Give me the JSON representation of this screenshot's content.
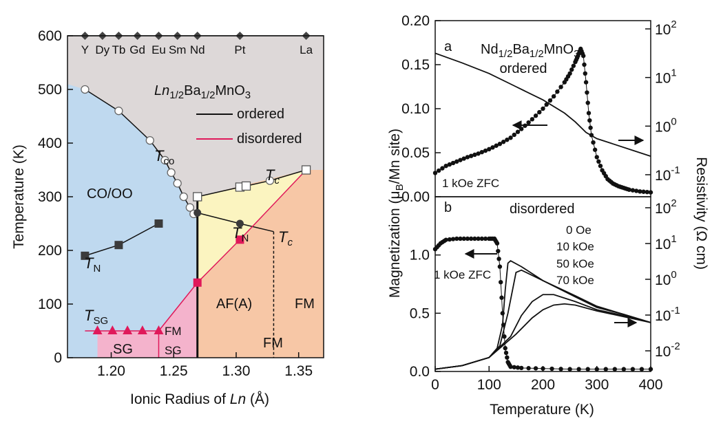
{
  "chart_data": [
    {
      "type": "scatter",
      "panel": "left",
      "formula": {
        "sym": "Ln",
        "sub1": "1/2",
        "base": "Ba",
        "sub2": "1/2",
        "tail": "MnO",
        "sub3": "3"
      },
      "xlabel": {
        "pre": "Ionic Radius of ",
        "ital": "Ln",
        "post": " (Å)"
      },
      "ylabel": "Temperature (K)",
      "xlim": [
        1.165,
        1.37
      ],
      "ylim": [
        0,
        600
      ],
      "xticks": [
        "1.20",
        "1.25",
        "1.30",
        "1.35"
      ],
      "yticks": [
        "0",
        "100",
        "200",
        "300",
        "400",
        "500",
        "600"
      ],
      "legend": {
        "placement": "top-right",
        "entries": [
          {
            "label": "ordered",
            "color": "#111111"
          },
          {
            "label": "disordered",
            "color": "#e0195a"
          }
        ]
      },
      "elements": {
        "labels": [
          "Y",
          "Dy",
          "Tb",
          "Gd",
          "Eu",
          "Sm",
          "Nd",
          "Pt",
          "La"
        ],
        "x": [
          1.179,
          1.193,
          1.206,
          1.221,
          1.238,
          1.253,
          1.269,
          1.303,
          1.356
        ],
        "y": 600
      },
      "regions": [
        "CO/OO",
        "AF(A)",
        "FM",
        "FM",
        "SG",
        "FM",
        "SG"
      ],
      "region_colors": {
        "gray": "#ddd8d8",
        "blue": "#bfd9ef",
        "yellow": "#fbf4c0",
        "orange": "#f7c7a6",
        "pink": "#f4b3cc"
      },
      "transition_labels": {
        "Tco": {
          "sym": "T",
          "sub": "co"
        },
        "Tc": {
          "sym": "T",
          "sub": "c"
        },
        "TN": {
          "sym": "T",
          "sub": "N"
        },
        "TSG": {
          "sym": "T",
          "sub": "SG"
        }
      },
      "series": [
        {
          "kind": "Tco",
          "marker": "open-circle",
          "x": [
            1.179,
            1.206,
            1.231,
            1.243,
            1.248,
            1.253,
            1.258,
            1.263,
            1.266
          ],
          "y": [
            500,
            460,
            405,
            368,
            345,
            325,
            300,
            280,
            268
          ]
        },
        {
          "kind": "Tc",
          "marker": "open-square",
          "x": [
            1.269,
            1.303,
            1.308,
            1.356
          ],
          "y": [
            300,
            318,
            320,
            350
          ]
        },
        {
          "kind": "Tc",
          "marker": "open-circle",
          "x": [
            1.327
          ],
          "y": [
            330
          ]
        },
        {
          "kind": "TN",
          "marker": "filled-square",
          "x": [
            1.179,
            1.206,
            1.238
          ],
          "y": [
            190,
            210,
            250
          ]
        },
        {
          "kind": "TN",
          "marker": "filled-circle",
          "x": [
            1.269,
            1.303
          ],
          "y": [
            270,
            250
          ]
        },
        {
          "kind": "Tc-disordered",
          "marker": "red-square",
          "x": [
            1.269,
            1.303
          ],
          "y": [
            140,
            220
          ]
        },
        {
          "kind": "TSG",
          "marker": "red-triangle",
          "x": [
            1.189,
            1.201,
            1.213,
            1.225,
            1.238
          ],
          "y": [
            50,
            50,
            50,
            50,
            50
          ]
        }
      ]
    },
    {
      "type": "line",
      "panel": "right",
      "ylabel_left": {
        "pre": "Magnetization (μ",
        "sub": "B",
        "post": "/Mn site)"
      },
      "ylabel_right": "Resistivity (Ω cm)",
      "xlabel": "Temperature (K)",
      "xlim": [
        0,
        400
      ],
      "xticks": [
        "0",
        "100",
        "200",
        "300",
        "400"
      ],
      "subplots": [
        {
          "tag": "a",
          "title": {
            "base": "Nd",
            "sub1": "1/2",
            "mid": "Ba",
            "sub2": "1/2",
            "tail": "MnO",
            "sub3": "3"
          },
          "subtitle": "ordered",
          "note": "1 kOe ZFC",
          "ylim_left": [
            0,
            0.2
          ],
          "yticks_left": [
            "0.00",
            "0.05",
            "0.10",
            "0.15",
            "0.20"
          ],
          "yticks_right": [
            {
              "base": "10",
              "exp": "-1"
            },
            {
              "base": "10",
              "exp": "0"
            },
            {
              "base": "10",
              "exp": "1"
            },
            {
              "base": "10",
              "exp": "2"
            }
          ],
          "series": [
            {
              "kind": "magnetization",
              "marker": "dot",
              "x": [
                0,
                20,
                40,
                60,
                80,
                100,
                120,
                140,
                160,
                180,
                200,
                220,
                240,
                250,
                260,
                265,
                270,
                275,
                280,
                285,
                290,
                300,
                310,
                320,
                330,
                340,
                350,
                360,
                380,
                400
              ],
              "y": [
                0.027,
                0.035,
                0.04,
                0.045,
                0.049,
                0.054,
                0.06,
                0.067,
                0.077,
                0.088,
                0.1,
                0.114,
                0.13,
                0.14,
                0.153,
                0.16,
                0.168,
                0.16,
                0.13,
                0.095,
                0.07,
                0.045,
                0.03,
                0.02,
                0.015,
                0.012,
                0.01,
                0.008,
                0.006,
                0.005
              ]
            },
            {
              "kind": "resistivity",
              "marker": "none",
              "x": [
                0,
                50,
                100,
                150,
                200,
                240,
                260,
                280,
                300,
                330,
                360,
                400
              ],
              "y": [
                0.163,
                0.152,
                0.14,
                0.125,
                0.11,
                0.095,
                0.085,
                0.073,
                0.066,
                0.06,
                0.054,
                0.046
              ]
            }
          ]
        },
        {
          "tag": "b",
          "subtitle": "disordered",
          "note": "1 kOe ZFC",
          "field_labels": [
            "0 Oe",
            "10 kOe",
            "50 kOe",
            "70 kOe"
          ],
          "ylim_left": [
            0,
            1.5
          ],
          "yticks_left": [
            "0.0",
            "0.5",
            "1.0"
          ],
          "yticks_right": [
            {
              "base": "10",
              "exp": "-2"
            },
            {
              "base": "10",
              "exp": "-1"
            },
            {
              "base": "10",
              "exp": "0"
            },
            {
              "base": "10",
              "exp": "1"
            },
            {
              "base": "10",
              "exp": "2"
            }
          ],
          "series": [
            {
              "kind": "magnetization",
              "marker": "dot",
              "x": [
                0,
                10,
                20,
                40,
                60,
                80,
                100,
                110,
                115,
                120,
                125,
                130,
                135,
                140,
                160,
                200,
                250,
                300,
                350,
                400
              ],
              "y": [
                1.05,
                1.1,
                1.13,
                1.14,
                1.14,
                1.14,
                1.14,
                1.14,
                1.1,
                0.9,
                0.5,
                0.2,
                0.08,
                0.04,
                0.03,
                0.025,
                0.02,
                0.02,
                0.02,
                0.02
              ]
            },
            {
              "kind": "resistivity",
              "name": "0 Oe",
              "marker": "none",
              "x": [
                0,
                50,
                100,
                115,
                125,
                130,
                135,
                140,
                160,
                200,
                260,
                300,
                350,
                400
              ],
              "y": [
                0.02,
                0.05,
                0.12,
                0.2,
                0.4,
                0.7,
                0.93,
                0.95,
                0.9,
                0.78,
                0.65,
                0.56,
                0.49,
                0.42
              ]
            },
            {
              "kind": "resistivity",
              "name": "10 kOe",
              "marker": "none",
              "x": [
                0,
                50,
                100,
                120,
                135,
                150,
                160,
                200,
                260,
                300,
                350,
                400
              ],
              "y": [
                0.02,
                0.05,
                0.12,
                0.22,
                0.5,
                0.85,
                0.87,
                0.78,
                0.64,
                0.55,
                0.49,
                0.42
              ]
            },
            {
              "kind": "resistivity",
              "name": "50 kOe",
              "marker": "none",
              "x": [
                0,
                50,
                100,
                140,
                160,
                180,
                200,
                220,
                260,
                300,
                350,
                400
              ],
              "y": [
                0.02,
                0.05,
                0.12,
                0.3,
                0.48,
                0.6,
                0.66,
                0.66,
                0.6,
                0.53,
                0.48,
                0.42
              ]
            },
            {
              "kind": "resistivity",
              "name": "70 kOe",
              "marker": "none",
              "x": [
                0,
                50,
                100,
                150,
                180,
                200,
                220,
                240,
                260,
                300,
                350,
                400
              ],
              "y": [
                0.02,
                0.05,
                0.12,
                0.32,
                0.46,
                0.53,
                0.57,
                0.58,
                0.57,
                0.52,
                0.47,
                0.42
              ]
            }
          ]
        }
      ]
    }
  ]
}
